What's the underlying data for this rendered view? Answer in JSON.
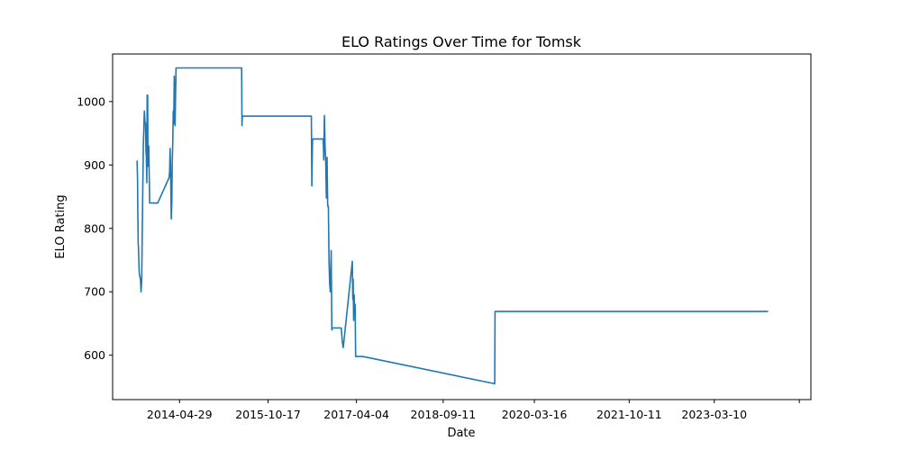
{
  "chart_data": {
    "type": "line",
    "title": "ELO Ratings Over Time for Tomsk",
    "xlabel": "Date",
    "ylabel": "ELO Rating",
    "x_tick_labels": [
      "2014-04-29",
      "2015-10-17",
      "2017-04-04",
      "2018-09-11",
      "2020-03-16",
      "2021-10-11",
      "2023-03-10"
    ],
    "y_ticks": [
      600,
      700,
      800,
      900,
      1000
    ],
    "xlim": [
      "2013-03-20",
      "2024-10-15"
    ],
    "ylim": [
      530,
      1075
    ],
    "grid": false,
    "series": [
      {
        "color": "#1f77b4",
        "x": [
          "2013-08-15",
          "2013-08-18",
          "2013-08-19",
          "2013-08-22",
          "2013-08-23",
          "2013-08-28",
          "2013-09-05",
          "2013-09-08",
          "2013-09-12",
          "2013-09-18",
          "2013-09-22",
          "2013-09-28",
          "2013-10-02",
          "2013-10-05",
          "2013-10-08",
          "2013-10-10",
          "2013-10-13",
          "2013-10-15",
          "2013-10-18",
          "2013-10-20",
          "2013-10-25",
          "2013-10-30",
          "2013-11-02",
          "2013-11-05",
          "2013-11-08",
          "2013-11-12",
          "2013-11-15",
          "2013-11-18",
          "2013-11-22",
          "2013-11-25",
          "2013-11-28",
          "2013-12-02",
          "2013-12-05",
          "2013-12-08",
          "2013-12-12",
          "2013-12-18",
          "2014-02-25",
          "2014-02-28",
          "2014-03-03",
          "2014-03-06",
          "2014-03-10",
          "2014-03-13",
          "2014-03-16",
          "2014-03-19",
          "2014-03-22",
          "2014-03-25",
          "2014-03-28",
          "2014-04-02",
          "2014-04-08",
          "2014-04-12",
          "2014-04-16",
          "2014-04-18",
          "2014-04-21",
          "2014-04-23",
          "2014-04-25",
          "2014-04-28",
          "2014-05-02",
          "2014-05-05",
          "2014-05-08",
          "2015-05-10",
          "2015-05-12",
          "2015-05-14",
          "2016-07-05",
          "2016-07-08",
          "2016-07-12",
          "2016-09-15",
          "2016-09-18",
          "2016-09-22",
          "2016-09-26",
          "2016-09-30",
          "2016-10-04",
          "2016-10-08",
          "2016-10-12",
          "2016-10-16",
          "2016-10-20",
          "2016-10-24",
          "2016-10-28",
          "2016-11-02",
          "2016-11-06",
          "2016-11-10",
          "2016-11-16",
          "2016-11-22",
          "2016-11-28",
          "2016-12-04",
          "2016-12-10",
          "2016-12-15",
          "2016-12-20",
          "2016-12-25",
          "2017-01-02",
          "2017-01-08",
          "2017-01-14",
          "2017-03-10",
          "2017-03-13",
          "2017-03-15",
          "2017-03-18",
          "2017-03-21",
          "2017-03-24",
          "2017-03-27",
          "2017-03-30",
          "2017-04-02",
          "2017-04-05",
          "2017-04-08",
          "2017-04-12",
          "2017-04-16",
          "2017-04-20",
          "2017-04-25",
          "2017-05-01",
          "2017-05-05",
          "2017-05-08",
          "2017-05-12",
          "2019-07-20",
          "2019-07-22",
          "2019-07-24",
          "2024-01-30"
        ],
        "y": [
          907,
          876,
          838,
          773,
          773,
          730,
          718,
          700,
          718,
          852,
          930,
          985,
          966,
          966,
          920,
          915,
          872,
          1010,
          1010,
          898,
          930,
          840,
          840,
          840,
          840,
          840,
          840,
          840,
          840,
          840,
          840,
          840,
          840,
          840,
          840,
          840,
          880,
          890,
          926,
          895,
          815,
          838,
          905,
          935,
          985,
          965,
          1040,
          962,
          1053,
          1053,
          1053,
          1053,
          1053,
          1053,
          1053,
          1053,
          1053,
          1053,
          1053,
          1053,
          962,
          977,
          977,
          867,
          941,
          941,
          908,
          978,
          930,
          905,
          848,
          912,
          835,
          835,
          748,
          712,
          700,
          765,
          640,
          643,
          643,
          643,
          643,
          643,
          643,
          643,
          643,
          643,
          643,
          622,
          612,
          748,
          688,
          720,
          655,
          695,
          670,
          680,
          598,
          598,
          598,
          598,
          598,
          598,
          598,
          598,
          598,
          598,
          598,
          598,
          555,
          669,
          669,
          669
        ]
      }
    ]
  }
}
